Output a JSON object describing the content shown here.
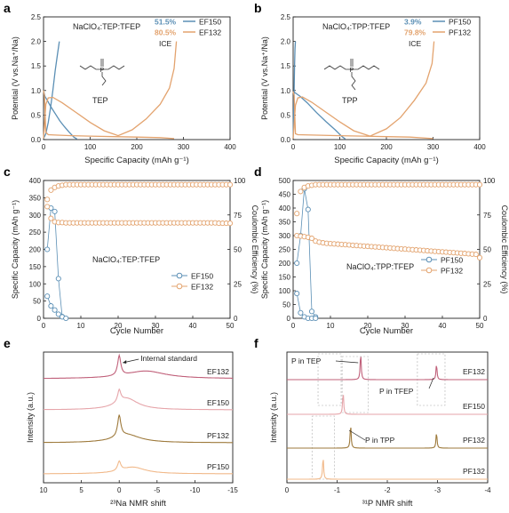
{
  "chart_data": [
    {
      "panel": "a",
      "type": "line",
      "xlabel": "Specific Capacity (mAh g⁻¹)",
      "ylabel": "Potential (V vs.Na⁺/Na)",
      "xlim": [
        0,
        400
      ],
      "ylim": [
        0,
        2.5
      ],
      "xticks": [
        0,
        100,
        200,
        300,
        400
      ],
      "yticks": [
        0.0,
        0.5,
        1.0,
        1.5,
        2.0,
        2.5
      ],
      "annotation": "NaClO₄:TEP:TFEP",
      "molecule_label": "TEP",
      "legend": [
        {
          "value": "51.5%",
          "label": "EF150"
        },
        {
          "value": "80.5%",
          "label": "EF132"
        }
      ],
      "legend_caption": "ICE",
      "colors": {
        "EF150": "#5b8fb5",
        "EF132": "#e3a36e"
      },
      "series": [
        {
          "name": "EF150",
          "segment": "discharge",
          "x": [
            0,
            3,
            8,
            15,
            25,
            35,
            45,
            55,
            65,
            72
          ],
          "y": [
            1.0,
            0.88,
            0.8,
            0.68,
            0.53,
            0.38,
            0.26,
            0.15,
            0.05,
            0.01
          ]
        },
        {
          "name": "EF150",
          "segment": "charge",
          "x": [
            0,
            5,
            10,
            15,
            20,
            25,
            30,
            34
          ],
          "y": [
            0.02,
            0.12,
            0.35,
            0.65,
            1.0,
            1.4,
            1.75,
            2.0
          ]
        },
        {
          "name": "EF132",
          "segment": "discharge",
          "x": [
            0,
            2,
            5,
            10,
            30,
            60,
            100,
            150,
            200,
            250,
            280
          ],
          "y": [
            1.0,
            0.9,
            0.15,
            0.1,
            0.09,
            0.08,
            0.07,
            0.06,
            0.05,
            0.04,
            0.02
          ]
        },
        {
          "name": "EF132",
          "segment": "charge",
          "x": [
            0,
            5,
            10,
            20,
            40,
            70,
            100,
            130,
            160,
            190,
            220,
            250,
            270,
            280,
            285
          ],
          "y": [
            0.02,
            0.72,
            0.85,
            0.86,
            0.75,
            0.55,
            0.35,
            0.18,
            0.08,
            0.2,
            0.42,
            0.72,
            1.05,
            1.45,
            2.0
          ]
        }
      ]
    },
    {
      "panel": "b",
      "type": "line",
      "xlabel": "Specific Capacity (mAh g⁻¹)",
      "ylabel": "Potential (V vs.Na⁺/Na)",
      "xlim": [
        0,
        400
      ],
      "ylim": [
        0,
        2.5
      ],
      "xticks": [
        0,
        100,
        200,
        300,
        400
      ],
      "yticks": [
        0.0,
        0.5,
        1.0,
        1.5,
        2.0,
        2.5
      ],
      "annotation": "NaClO₄:TPP:TFEP",
      "molecule_label": "TPP",
      "legend": [
        {
          "value": "3.9%",
          "label": "PF150"
        },
        {
          "value": "79.8%",
          "label": "PF132"
        }
      ],
      "legend_caption": "ICE",
      "colors": {
        "PF150": "#5b8fb5",
        "PF132": "#e3a36e"
      },
      "series": [
        {
          "name": "PF150",
          "segment": "discharge",
          "x": [
            0,
            5,
            15,
            30,
            50,
            70,
            90,
            105,
            112
          ],
          "y": [
            0.98,
            0.95,
            0.88,
            0.75,
            0.55,
            0.37,
            0.2,
            0.06,
            0.01
          ]
        },
        {
          "name": "PF150",
          "segment": "charge",
          "x": [
            0,
            1,
            2,
            3,
            4,
            5
          ],
          "y": [
            0.02,
            0.5,
            1.0,
            1.5,
            1.85,
            2.0
          ]
        },
        {
          "name": "PF132",
          "segment": "discharge",
          "x": [
            0,
            2,
            5,
            10,
            50,
            100,
            150,
            200,
            250,
            300
          ],
          "y": [
            0.98,
            0.9,
            0.12,
            0.1,
            0.09,
            0.08,
            0.07,
            0.06,
            0.05,
            0.02
          ]
        },
        {
          "name": "PF132",
          "segment": "charge",
          "x": [
            0,
            5,
            10,
            20,
            40,
            70,
            100,
            130,
            165,
            200,
            230,
            260,
            285,
            298,
            302
          ],
          "y": [
            0.02,
            0.7,
            0.85,
            0.87,
            0.76,
            0.56,
            0.36,
            0.18,
            0.07,
            0.22,
            0.45,
            0.8,
            1.15,
            1.55,
            2.0
          ]
        }
      ]
    },
    {
      "panel": "c",
      "type": "scatter",
      "xlabel": "Cycle Number",
      "ylabel": "Specific Capacity (mAh g⁻¹)",
      "y2label": "Coulombic Efficiency (%)",
      "xlim": [
        0,
        50
      ],
      "ylim": [
        0,
        400
      ],
      "y2lim": [
        0,
        100
      ],
      "xticks": [
        0,
        10,
        20,
        30,
        40,
        50
      ],
      "yticks": [
        0,
        50,
        100,
        150,
        200,
        250,
        300,
        350,
        400
      ],
      "y2ticks": [
        0,
        25,
        50,
        75,
        100
      ],
      "annotation": "NaClO₄:TEP:TFEP",
      "legend": [
        "EF150",
        "EF132"
      ],
      "legend_position": "right",
      "colors": {
        "EF150": "#5b8fb5",
        "EF132": "#e3a36e"
      },
      "series": [
        {
          "name": "EF150",
          "kind": "capacity",
          "x": [
            1,
            2,
            3,
            4,
            5
          ],
          "y": [
            200,
            320,
            310,
            115,
            5
          ]
        },
        {
          "name": "EF150",
          "kind": "efficiency",
          "x": [
            1,
            2,
            3,
            4,
            5,
            6
          ],
          "y": [
            16,
            9,
            6,
            3,
            1,
            0
          ]
        },
        {
          "name": "EF132",
          "kind": "capacity",
          "x_start": 1,
          "x_end": 50,
          "y": [
            345,
            290,
            280,
            278,
            278,
            277,
            277,
            277,
            277,
            277,
            277,
            277,
            277,
            277,
            277,
            277,
            277,
            277,
            277,
            277,
            277,
            277,
            277,
            277,
            277,
            277,
            277,
            277,
            277,
            277,
            277,
            277,
            277,
            277,
            277,
            277,
            277,
            277,
            277,
            277,
            277,
            277,
            277,
            277,
            277,
            277,
            276,
            276,
            276,
            276
          ]
        },
        {
          "name": "EF132",
          "kind": "efficiency",
          "x_start": 1,
          "x_end": 50,
          "y": [
            81,
            93,
            95,
            96,
            96.5,
            97,
            97,
            97,
            97,
            97,
            97,
            97,
            97,
            97,
            97,
            97,
            97,
            97,
            97,
            97,
            97,
            97,
            97,
            97,
            97,
            97,
            97,
            97,
            97,
            97,
            97,
            97,
            97,
            97,
            97,
            97,
            97,
            97,
            97,
            97,
            97,
            97,
            97,
            97,
            97,
            97,
            97,
            97,
            97,
            97
          ]
        }
      ]
    },
    {
      "panel": "d",
      "type": "scatter",
      "xlabel": "Cycle Number",
      "ylabel": "Specific Capacity (mAh g⁻¹)",
      "y2label": "Coulombic Efficiency (%)",
      "xlim": [
        0,
        50
      ],
      "ylim": [
        0,
        500
      ],
      "y2lim": [
        0,
        100
      ],
      "xticks": [
        0,
        10,
        20,
        30,
        40,
        50
      ],
      "yticks": [
        0,
        50,
        100,
        150,
        200,
        250,
        300,
        350,
        400,
        450,
        500
      ],
      "y2ticks": [
        0,
        25,
        50,
        75,
        100
      ],
      "annotation": "NaClO₄:TPP:TFEP",
      "legend": [
        "PF150",
        "PF132"
      ],
      "legend_position": "right",
      "colors": {
        "PF150": "#5b8fb5",
        "PF132": "#e3a36e"
      },
      "series": [
        {
          "name": "PF150",
          "kind": "capacity",
          "x": [
            1,
            2,
            3,
            4,
            5,
            6
          ],
          "y": [
            200,
            300,
            470,
            395,
            25,
            5
          ]
        },
        {
          "name": "PF150",
          "kind": "efficiency",
          "x": [
            1,
            2,
            3,
            4,
            5,
            6
          ],
          "y": [
            18,
            4,
            1,
            0,
            0,
            0
          ]
        },
        {
          "name": "PF132",
          "kind": "capacity",
          "x_start": 1,
          "x_end": 50,
          "y": [
            300,
            298,
            296,
            294,
            290,
            280,
            276,
            274,
            272,
            271,
            270,
            269,
            268,
            267,
            266,
            265,
            264,
            263,
            262,
            261,
            260,
            259,
            258,
            257,
            256,
            255,
            254,
            253,
            252,
            251,
            250,
            249,
            248,
            247,
            246,
            245,
            244,
            243,
            242,
            241,
            240,
            239,
            238,
            237,
            236,
            235,
            234,
            233,
            232,
            220
          ]
        },
        {
          "name": "PF132",
          "kind": "efficiency",
          "x_start": 1,
          "x_end": 50,
          "y": [
            76,
            92,
            95,
            96,
            96.5,
            97,
            97,
            97,
            97,
            97,
            97,
            97,
            97,
            97,
            97,
            97,
            97,
            97,
            97,
            97,
            97,
            97,
            97,
            97,
            97,
            97,
            97,
            97,
            97,
            97,
            97,
            97,
            97,
            97,
            97,
            97,
            97,
            97,
            97,
            97,
            97,
            97,
            97,
            97,
            97,
            97,
            97,
            97,
            97,
            97
          ]
        }
      ]
    },
    {
      "panel": "e",
      "type": "line",
      "xlabel": "²³Na NMR shift",
      "ylabel": "Intensity (a.u.)",
      "xlim": [
        10,
        -15
      ],
      "xticks": [
        10,
        5,
        0,
        -5,
        -10,
        -15
      ],
      "annotation": "Internal standard",
      "series": [
        {
          "name": "EF132",
          "color": "#c0607a",
          "peaks": [
            {
              "pos": 0,
              "height": 3.0,
              "width": 0.25
            },
            {
              "pos": -3.5,
              "height": 1.15,
              "width": 3.2
            }
          ]
        },
        {
          "name": "EF150",
          "color": "#e6a5aa",
          "peaks": [
            {
              "pos": 0,
              "height": 1.8,
              "width": 0.25
            },
            {
              "pos": -1.0,
              "height": 1.7,
              "width": 1.8
            }
          ]
        },
        {
          "name": "PF132",
          "color": "#9e7a3c",
          "peaks": [
            {
              "pos": 0,
              "height": 3.2,
              "width": 0.25
            },
            {
              "pos": -1.0,
              "height": 1.2,
              "width": 2.2
            }
          ]
        },
        {
          "name": "PF150",
          "color": "#f1b98a",
          "peaks": [
            {
              "pos": 0,
              "height": 1.4,
              "width": 0.25
            },
            {
              "pos": -1.8,
              "height": 1.0,
              "width": 2.0
            }
          ]
        }
      ]
    },
    {
      "panel": "f",
      "type": "line",
      "xlabel": "³¹P NMR shift",
      "ylabel": "Intensity (a.u.)",
      "xlim": [
        0,
        -4
      ],
      "xticks": [
        0,
        -1,
        -2,
        -3,
        -4
      ],
      "annotations": [
        "P in TEP",
        "P in TFEP",
        "P in TPP"
      ],
      "series": [
        {
          "name": "EF132",
          "color": "#c0607a",
          "peaks": [
            {
              "pos": -1.47,
              "height": 1.0
            },
            {
              "pos": -2.98,
              "height": 0.6
            }
          ]
        },
        {
          "name": "EF150",
          "color": "#e6a5aa",
          "peaks": [
            {
              "pos": -1.12,
              "height": 0.85
            }
          ]
        },
        {
          "name": "PF132",
          "color": "#9e7a3c",
          "peaks": [
            {
              "pos": -1.27,
              "height": 0.9
            },
            {
              "pos": -2.98,
              "height": 0.6
            }
          ]
        },
        {
          "name": "PF132",
          "color": "#f1b98a",
          "peaks": [
            {
              "pos": -0.72,
              "height": 0.85
            }
          ]
        }
      ]
    }
  ],
  "panel_letters": [
    "a",
    "b",
    "c",
    "d",
    "e",
    "f"
  ]
}
